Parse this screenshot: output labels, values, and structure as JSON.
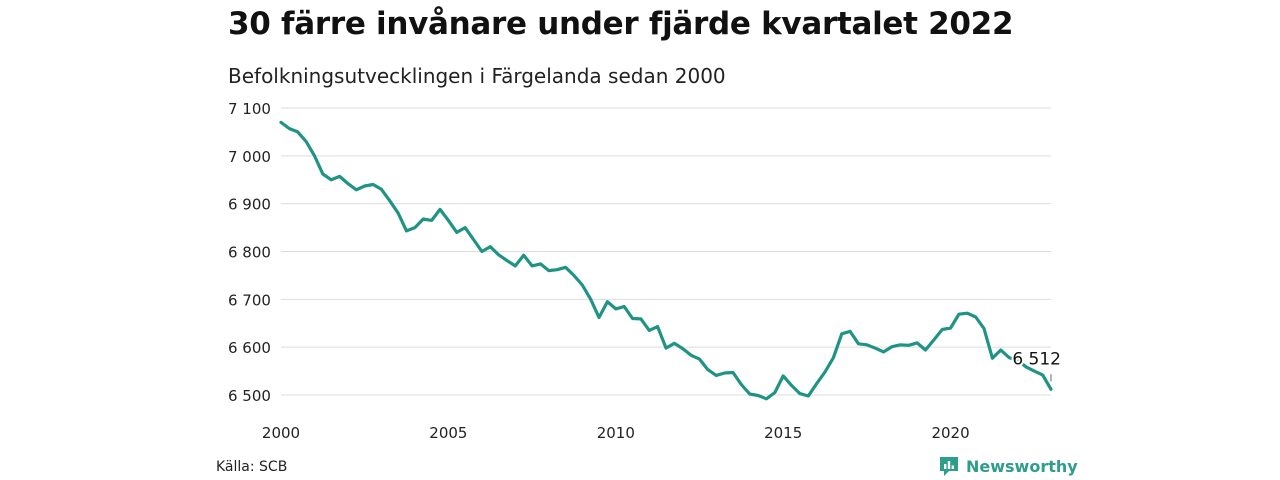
{
  "header": {
    "title": "30 färre invånare under fjärde kvartalet 2022",
    "subtitle": "Befolkningsutvecklingen i Färgelanda sedan 2000"
  },
  "footer": {
    "source": "Källa: SCB",
    "brand": "Newsworthy",
    "brand_icon": "bar-chart-speech-bubble-icon"
  },
  "colors": {
    "line": "#1f9484",
    "grid": "#dddddd",
    "brand": "#2e9d8c"
  },
  "chart_data": {
    "type": "line",
    "title": "30 färre invånare under fjärde kvartalet 2022",
    "subtitle": "Befolkningsutvecklingen i Färgelanda sedan 2000",
    "xlim": [
      2000,
      2023
    ],
    "ylim": [
      6500,
      7100
    ],
    "x_ticks": [
      2000,
      2005,
      2010,
      2015,
      2020
    ],
    "x_tick_labels": [
      "2000",
      "2005",
      "2010",
      "2015",
      "2020"
    ],
    "y_ticks": [
      6500,
      6600,
      6700,
      6800,
      6900,
      7000,
      7100
    ],
    "y_tick_labels": [
      "6 500",
      "6 600",
      "6 700",
      "6 800",
      "6 900",
      "7 000",
      "7 100"
    ],
    "grid": true,
    "end_label": "6 512",
    "series": [
      {
        "x": [
          2000.0,
          2000.25,
          2000.5,
          2000.75,
          2001.0,
          2001.25,
          2001.5,
          2001.75,
          2002.0,
          2002.25,
          2002.5,
          2002.75,
          2003.0,
          2003.25,
          2003.5,
          2003.75,
          2004.0,
          2004.25,
          2004.5,
          2004.75,
          2005.0,
          2005.25,
          2005.5,
          2005.75,
          2006.0,
          2006.25,
          2006.5,
          2006.75,
          2007.0,
          2007.25,
          2007.5,
          2007.75,
          2008.0,
          2008.25,
          2008.5,
          2008.75,
          2009.0,
          2009.25,
          2009.5,
          2009.75,
          2010.0,
          2010.25,
          2010.5,
          2010.75,
          2011.0,
          2011.25,
          2011.5,
          2011.75,
          2012.0,
          2012.25,
          2012.5,
          2012.75,
          2013.0,
          2013.25,
          2013.5,
          2013.75,
          2014.0,
          2014.25,
          2014.5,
          2014.75,
          2015.0,
          2015.25,
          2015.5,
          2015.75,
          2016.0,
          2016.25,
          2016.5,
          2016.75,
          2017.0,
          2017.25,
          2017.5,
          2017.75,
          2018.0,
          2018.25,
          2018.5,
          2018.75,
          2019.0,
          2019.25,
          2019.5,
          2019.75,
          2020.0,
          2020.25,
          2020.5,
          2020.75,
          2021.0,
          2021.25,
          2021.5,
          2021.75,
          2022.0,
          2022.25,
          2022.5,
          2022.75,
          2023.0
        ],
        "y": [
          7070,
          7057,
          7050,
          7030,
          7000,
          6962,
          6950,
          6957,
          6942,
          6929,
          6937,
          6940,
          6930,
          6906,
          6880,
          6843,
          6850,
          6868,
          6865,
          6888,
          6865,
          6840,
          6850,
          6825,
          6800,
          6810,
          6793,
          6781,
          6770,
          6792,
          6770,
          6774,
          6760,
          6762,
          6767,
          6750,
          6730,
          6700,
          6662,
          6695,
          6680,
          6685,
          6660,
          6659,
          6635,
          6643,
          6598,
          6608,
          6597,
          6583,
          6575,
          6553,
          6541,
          6546,
          6547,
          6522,
          6502,
          6499,
          6492,
          6505,
          6540,
          6520,
          6503,
          6498,
          6524,
          6548,
          6578,
          6628,
          6633,
          6607,
          6605,
          6598,
          6590,
          6601,
          6605,
          6604,
          6609,
          6594,
          6615,
          6637,
          6640,
          6669,
          6671,
          6663,
          6639,
          6577,
          6594,
          6578,
          6573,
          6559,
          6550,
          6542,
          6512
        ]
      }
    ]
  }
}
